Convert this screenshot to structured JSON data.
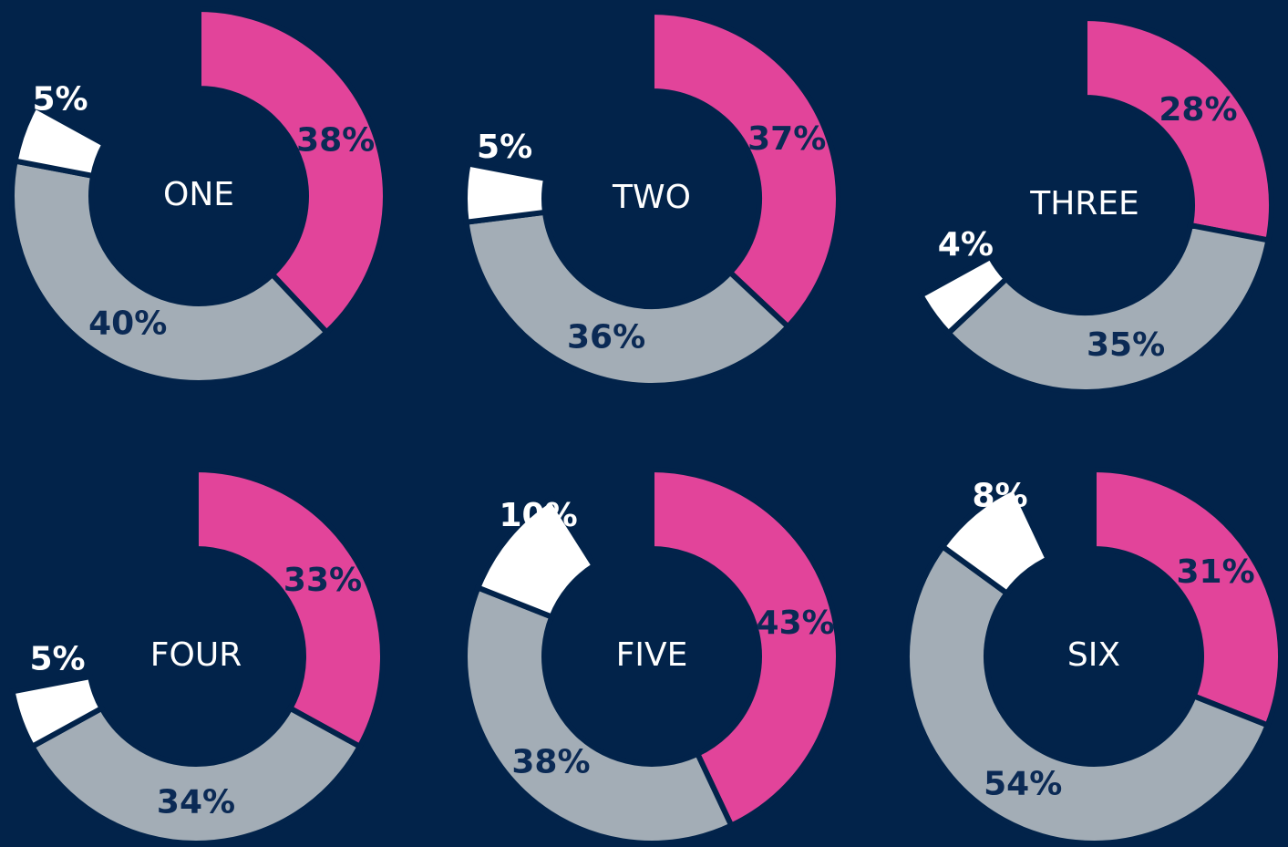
{
  "chart_data": [
    {
      "type": "pie",
      "donut": true,
      "title": "ONE",
      "values": [
        38,
        40,
        5
      ],
      "value_labels": [
        "38%",
        "40%",
        "5%"
      ],
      "colors": [
        "#e2449a",
        "#a3adb6",
        "#ffffff"
      ]
    },
    {
      "type": "pie",
      "donut": true,
      "title": "TWO",
      "values": [
        37,
        36,
        5
      ],
      "value_labels": [
        "37%",
        "36%",
        "5%"
      ],
      "colors": [
        "#e2449a",
        "#a3adb6",
        "#ffffff"
      ]
    },
    {
      "type": "pie",
      "donut": true,
      "title": "THREE",
      "values": [
        28,
        35,
        4
      ],
      "value_labels": [
        "28%",
        "35%",
        "4%"
      ],
      "colors": [
        "#e2449a",
        "#a3adb6",
        "#ffffff"
      ]
    },
    {
      "type": "pie",
      "donut": true,
      "title": "FOUR",
      "values": [
        33,
        34,
        5
      ],
      "value_labels": [
        "33%",
        "34%",
        "5%"
      ],
      "colors": [
        "#e2449a",
        "#a3adb6",
        "#ffffff"
      ]
    },
    {
      "type": "pie",
      "donut": true,
      "title": "FIVE",
      "values": [
        43,
        38,
        10
      ],
      "value_labels": [
        "43%",
        "38%",
        "10%"
      ],
      "colors": [
        "#e2449a",
        "#a3adb6",
        "#ffffff"
      ]
    },
    {
      "type": "pie",
      "donut": true,
      "title": "SIX",
      "values": [
        31,
        54,
        8
      ],
      "value_labels": [
        "31%",
        "54%",
        "8%"
      ],
      "colors": [
        "#e2449a",
        "#a3adb6",
        "#ffffff"
      ]
    }
  ]
}
